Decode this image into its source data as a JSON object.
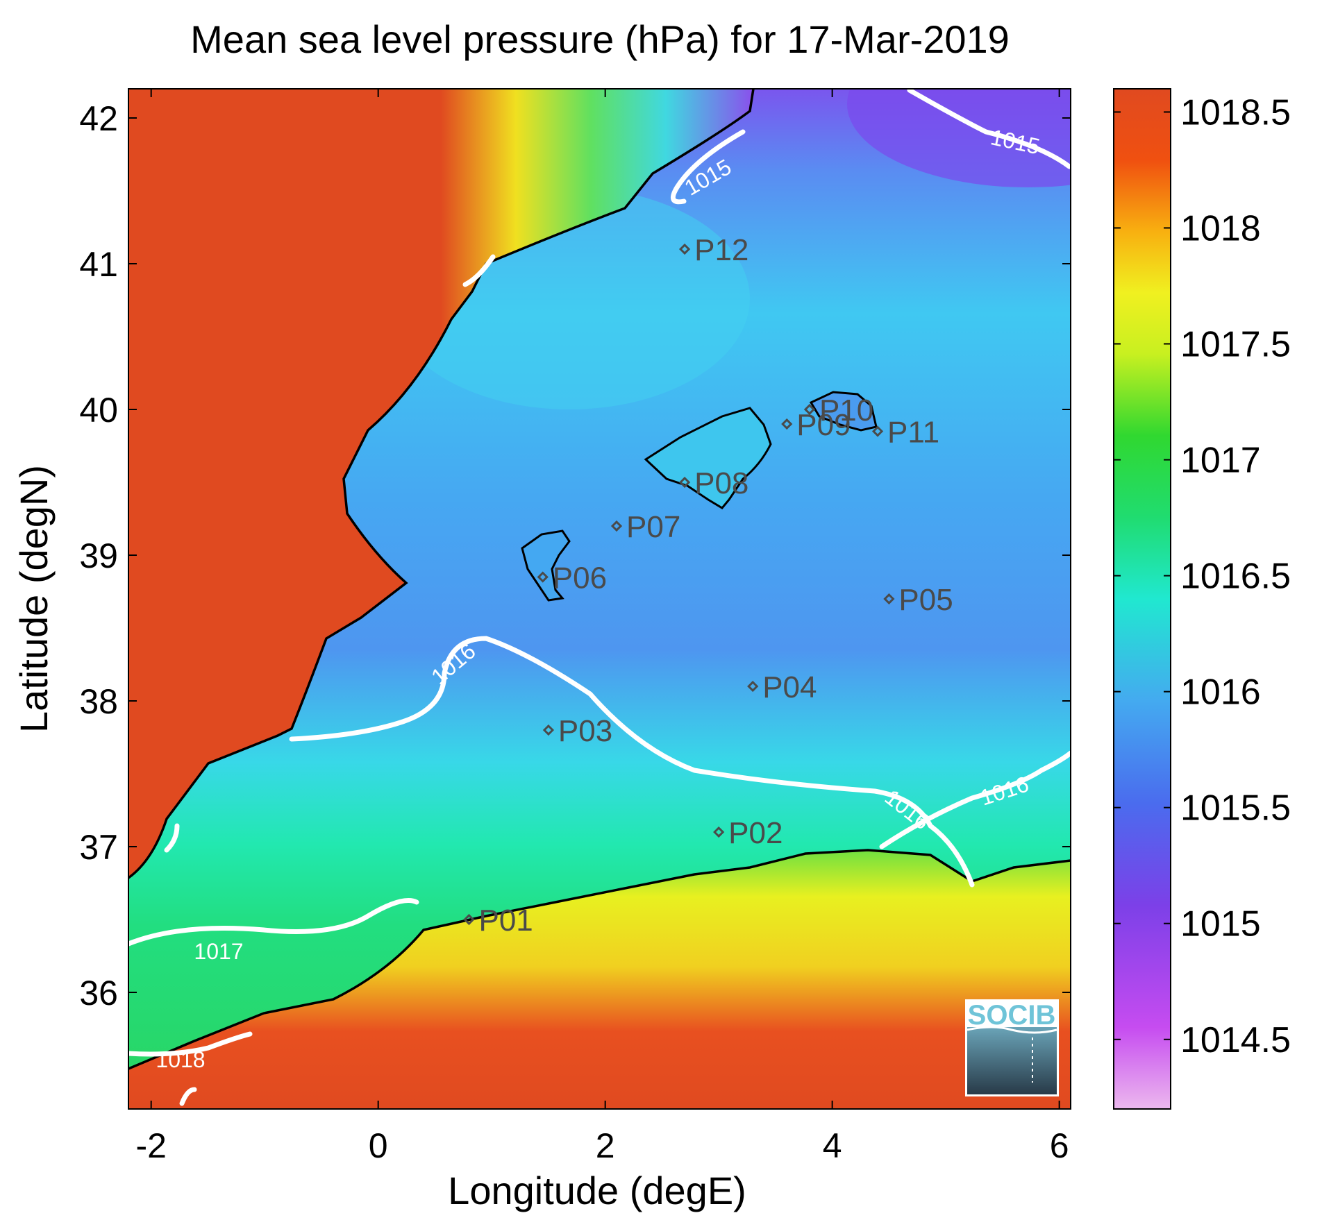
{
  "title": "Mean sea level pressure (hPa) for 17-Mar-2019",
  "map": {
    "xlabel": "Longitude (degE)",
    "ylabel": "Latitude (degN)",
    "xlim": [
      -2.2,
      6.1
    ],
    "ylim": [
      35.2,
      42.2
    ],
    "xticks": [
      -2,
      0,
      2,
      4,
      6
    ],
    "xtick_labels": [
      "-2",
      "0",
      "2",
      "4",
      "6"
    ],
    "yticks": [
      36,
      37,
      38,
      39,
      40,
      41,
      42
    ],
    "ytick_labels": [
      "36",
      "37",
      "38",
      "39",
      "40",
      "41",
      "42"
    ],
    "stations": [
      {
        "label": "P01",
        "lon": 0.8,
        "lat": 36.5
      },
      {
        "label": "P02",
        "lon": 3.0,
        "lat": 37.1
      },
      {
        "label": "P03",
        "lon": 1.5,
        "lat": 37.8
      },
      {
        "label": "P04",
        "lon": 3.3,
        "lat": 38.1
      },
      {
        "label": "P05",
        "lon": 4.5,
        "lat": 38.7
      },
      {
        "label": "P06",
        "lon": 1.45,
        "lat": 38.85
      },
      {
        "label": "P07",
        "lon": 2.1,
        "lat": 39.2
      },
      {
        "label": "P08",
        "lon": 2.7,
        "lat": 39.5
      },
      {
        "label": "P09",
        "lon": 3.6,
        "lat": 39.9
      },
      {
        "label": "P10",
        "lon": 3.8,
        "lat": 40.0
      },
      {
        "label": "P11",
        "lon": 4.4,
        "lat": 39.85
      },
      {
        "label": "P12",
        "lon": 2.7,
        "lat": 41.1
      }
    ],
    "contour_labels": [
      "1015",
      "1015",
      "1016",
      "1016",
      "1016",
      "1017",
      "1018"
    ]
  },
  "colorbar": {
    "range": [
      1014.2,
      1018.6
    ],
    "ticks": [
      1014.5,
      1015,
      1015.5,
      1016,
      1016.5,
      1017,
      1017.5,
      1018,
      1018.5
    ],
    "tick_labels": [
      "1014.5",
      "1015",
      "1015.5",
      "1016",
      "1016.5",
      "1017",
      "1017.5",
      "1018",
      "1018.5"
    ],
    "colors": [
      "#e8b4ec",
      "#c44cf0",
      "#7a3ee8",
      "#4a74ee",
      "#3cc0ee",
      "#1cecc8",
      "#20d860",
      "#3ae020",
      "#e8f020",
      "#f8b010",
      "#f05010",
      "#e04a20"
    ]
  },
  "logo": {
    "text": "SOCIB"
  },
  "colors": {
    "land_high": "#e04a20",
    "sea_blue": "#4a8ef0",
    "sea_green": "#30e080",
    "coastline": "#000000",
    "contour": "#ffffff"
  }
}
